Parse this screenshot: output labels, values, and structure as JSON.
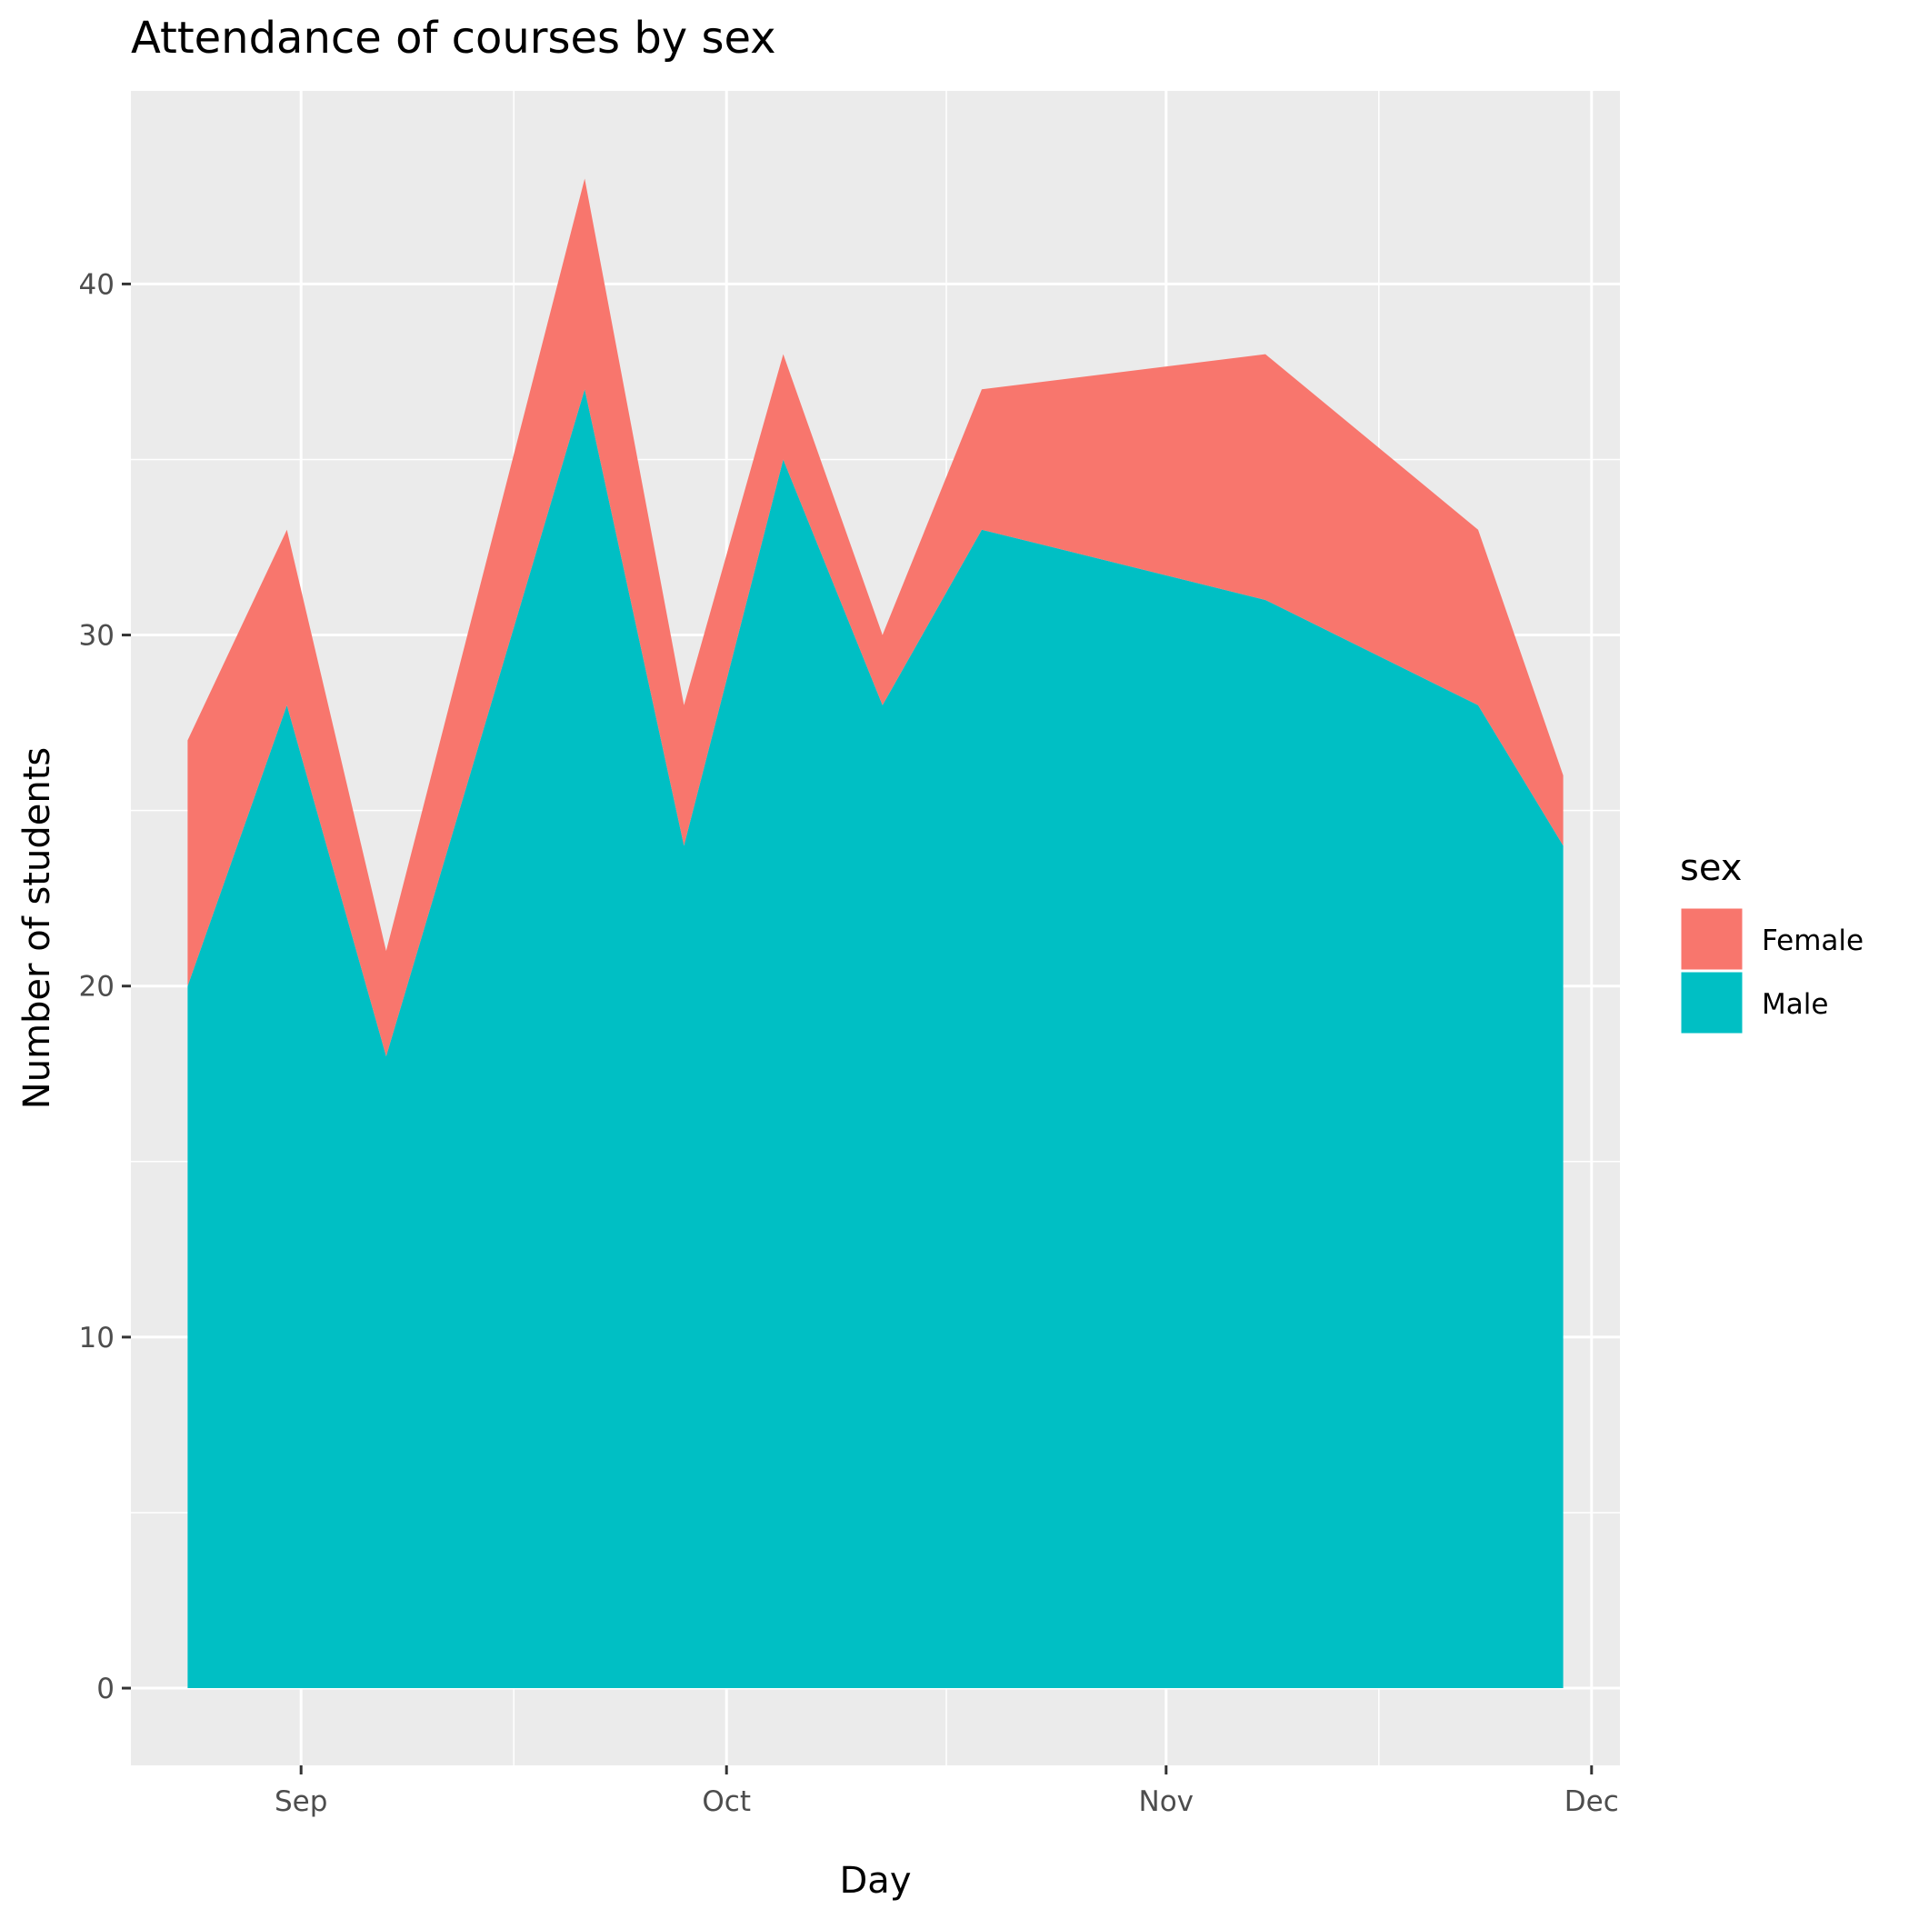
{
  "chart_data": {
    "type": "area",
    "stacked": true,
    "title": "Attendance of courses by sex",
    "xlabel": "Day",
    "ylabel": "Number of students",
    "x_axis": {
      "kind": "date",
      "range": [
        "2023-08-20",
        "2023-12-03"
      ],
      "ticks": [
        {
          "date": "2023-09-01",
          "label": "Sep"
        },
        {
          "date": "2023-10-01",
          "label": "Oct"
        },
        {
          "date": "2023-11-01",
          "label": "Nov"
        },
        {
          "date": "2023-12-01",
          "label": "Dec"
        }
      ]
    },
    "y_axis": {
      "range": [
        -2.2,
        45.5
      ],
      "ticks": [
        0,
        10,
        20,
        30,
        40
      ]
    },
    "x": [
      "2023-08-24",
      "2023-08-31",
      "2023-09-07",
      "2023-09-21",
      "2023-09-28",
      "2023-10-05",
      "2023-10-12",
      "2023-10-19",
      "2023-11-08",
      "2023-11-23",
      "2023-11-29"
    ],
    "series": [
      {
        "name": "Male",
        "color": "#00BFC4",
        "values": [
          20,
          28,
          18,
          37,
          24,
          35,
          28,
          33,
          31,
          28,
          24
        ]
      },
      {
        "name": "Female",
        "color": "#F8766D",
        "values": [
          7,
          5,
          3,
          6,
          4,
          3,
          2,
          4,
          7,
          5,
          2
        ]
      }
    ],
    "legend": {
      "title": "sex",
      "position": "right",
      "entries": [
        {
          "label": "Female",
          "color": "#F8766D"
        },
        {
          "label": "Male",
          "color": "#00BFC4"
        }
      ]
    },
    "grid": true,
    "panel_background": "#EBEBEB"
  }
}
